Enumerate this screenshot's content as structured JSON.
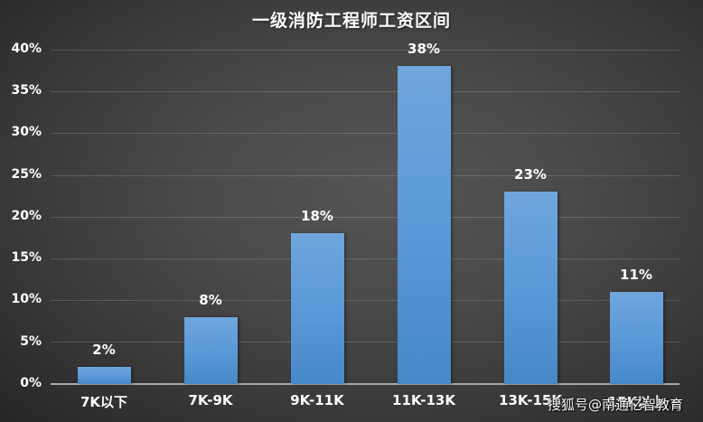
{
  "chart_data": {
    "type": "bar",
    "title": "一级消防工程师工资区间",
    "categories": [
      "7K以下",
      "7K-9K",
      "9K-11K",
      "11K-13K",
      "13K-15K",
      "15K以上"
    ],
    "values": [
      2,
      8,
      18,
      38,
      23,
      11
    ],
    "value_labels": [
      "2%",
      "8%",
      "18%",
      "38%",
      "23%",
      "11%"
    ],
    "xlabel": "",
    "ylabel": "",
    "ylim": [
      0,
      40
    ],
    "yticks": [
      "0%",
      "5%",
      "10%",
      "15%",
      "20%",
      "25%",
      "30%",
      "35%",
      "40%"
    ],
    "grid": true,
    "legend": "none",
    "bar_color": "#5b9bd5",
    "background_color": "#3f3f3f"
  },
  "watermark": "搜狐号@南通亿智教育"
}
